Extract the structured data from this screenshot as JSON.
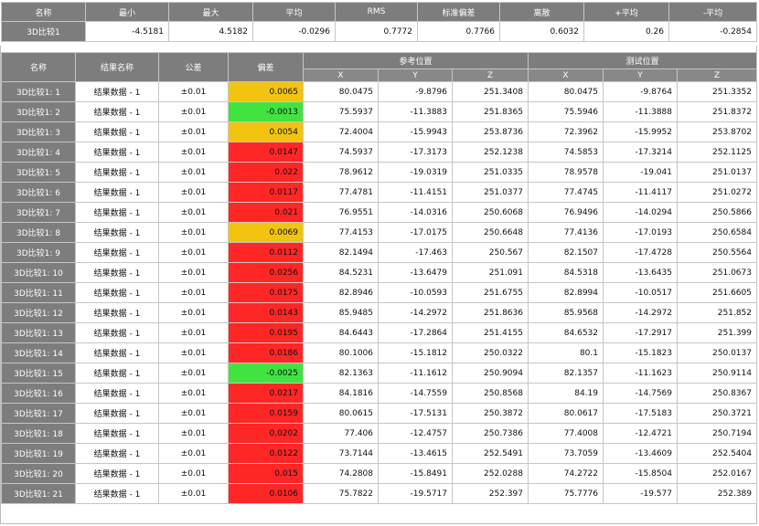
{
  "summary": {
    "headers": [
      "名称",
      "最小",
      "最大",
      "平均",
      "RMS",
      "标准偏差",
      "离散",
      "+平均",
      "-平均"
    ],
    "row": {
      "name": "3D比较1",
      "values": [
        "-4.5181",
        "4.5182",
        "-0.0296",
        "0.7772",
        "0.7766",
        "0.6032",
        "0.26",
        "-0.2854"
      ]
    }
  },
  "results": {
    "headers": {
      "name": "名称",
      "result_name": "结果名称",
      "tolerance": "公差",
      "deviation": "偏差",
      "ref_group": "参考位置",
      "test_group": "测试位置",
      "x": "X",
      "y": "Y",
      "z": "Z"
    },
    "colors": {
      "yellow": "#f2c40f",
      "green": "#41e341",
      "red": "#ff2626"
    },
    "rows": [
      {
        "name": "3D比较1: 1",
        "result": "结果数据 - 1",
        "tol": "±0.01",
        "dev": "0.0065",
        "status": "yellow",
        "rx": "80.0475",
        "ry": "-9.8796",
        "rz": "251.3408",
        "tx": "80.0475",
        "ty": "-9.8764",
        "tz": "251.3352"
      },
      {
        "name": "3D比较1: 2",
        "result": "结果数据 - 1",
        "tol": "±0.01",
        "dev": "-0.0013",
        "status": "green",
        "rx": "75.5937",
        "ry": "-11.3883",
        "rz": "251.8365",
        "tx": "75.5946",
        "ty": "-11.3888",
        "tz": "251.8372"
      },
      {
        "name": "3D比较1: 3",
        "result": "结果数据 - 1",
        "tol": "±0.01",
        "dev": "0.0054",
        "status": "yellow",
        "rx": "72.4004",
        "ry": "-15.9943",
        "rz": "253.8736",
        "tx": "72.3962",
        "ty": "-15.9952",
        "tz": "253.8702"
      },
      {
        "name": "3D比较1: 4",
        "result": "结果数据 - 1",
        "tol": "±0.01",
        "dev": "0.0147",
        "status": "red",
        "rx": "74.5937",
        "ry": "-17.3173",
        "rz": "252.1238",
        "tx": "74.5853",
        "ty": "-17.3214",
        "tz": "252.1125"
      },
      {
        "name": "3D比较1: 5",
        "result": "结果数据 - 1",
        "tol": "±0.01",
        "dev": "0.022",
        "status": "red",
        "rx": "78.9612",
        "ry": "-19.0319",
        "rz": "251.0335",
        "tx": "78.9578",
        "ty": "-19.041",
        "tz": "251.0137"
      },
      {
        "name": "3D比较1: 6",
        "result": "结果数据 - 1",
        "tol": "±0.01",
        "dev": "0.0117",
        "status": "red",
        "rx": "77.4781",
        "ry": "-11.4151",
        "rz": "251.0377",
        "tx": "77.4745",
        "ty": "-11.4117",
        "tz": "251.0272"
      },
      {
        "name": "3D比较1: 7",
        "result": "结果数据 - 1",
        "tol": "±0.01",
        "dev": "0.021",
        "status": "red",
        "rx": "76.9551",
        "ry": "-14.0316",
        "rz": "250.6068",
        "tx": "76.9496",
        "ty": "-14.0294",
        "tz": "250.5866"
      },
      {
        "name": "3D比较1: 8",
        "result": "结果数据 - 1",
        "tol": "±0.01",
        "dev": "0.0069",
        "status": "yellow",
        "rx": "77.4153",
        "ry": "-17.0175",
        "rz": "250.6648",
        "tx": "77.4136",
        "ty": "-17.0193",
        "tz": "250.6584"
      },
      {
        "name": "3D比较1: 9",
        "result": "结果数据 - 1",
        "tol": "±0.01",
        "dev": "0.0112",
        "status": "red",
        "rx": "82.1494",
        "ry": "-17.463",
        "rz": "250.567",
        "tx": "82.1507",
        "ty": "-17.4728",
        "tz": "250.5564"
      },
      {
        "name": "3D比较1: 10",
        "result": "结果数据 - 1",
        "tol": "±0.01",
        "dev": "0.0256",
        "status": "red",
        "rx": "84.5231",
        "ry": "-13.6479",
        "rz": "251.091",
        "tx": "84.5318",
        "ty": "-13.6435",
        "tz": "251.0673"
      },
      {
        "name": "3D比较1: 11",
        "result": "结果数据 - 1",
        "tol": "±0.01",
        "dev": "0.0175",
        "status": "red",
        "rx": "82.8946",
        "ry": "-10.0593",
        "rz": "251.6755",
        "tx": "82.8994",
        "ty": "-10.0517",
        "tz": "251.6605"
      },
      {
        "name": "3D比较1: 12",
        "result": "结果数据 - 1",
        "tol": "±0.01",
        "dev": "0.0143",
        "status": "red",
        "rx": "85.9485",
        "ry": "-14.2972",
        "rz": "251.8636",
        "tx": "85.9568",
        "ty": "-14.2972",
        "tz": "251.852"
      },
      {
        "name": "3D比较1: 13",
        "result": "结果数据 - 1",
        "tol": "±0.01",
        "dev": "0.0195",
        "status": "red",
        "rx": "84.6443",
        "ry": "-17.2864",
        "rz": "251.4155",
        "tx": "84.6532",
        "ty": "-17.2917",
        "tz": "251.399"
      },
      {
        "name": "3D比较1: 14",
        "result": "结果数据 - 1",
        "tol": "±0.01",
        "dev": "0.0186",
        "status": "red",
        "rx": "80.1006",
        "ry": "-15.1812",
        "rz": "250.0322",
        "tx": "80.1",
        "ty": "-15.1823",
        "tz": "250.0137"
      },
      {
        "name": "3D比较1: 15",
        "result": "结果数据 - 1",
        "tol": "±0.01",
        "dev": "-0.0025",
        "status": "green",
        "rx": "82.1363",
        "ry": "-11.1612",
        "rz": "250.9094",
        "tx": "82.1357",
        "ty": "-11.1623",
        "tz": "250.9114"
      },
      {
        "name": "3D比较1: 16",
        "result": "结果数据 - 1",
        "tol": "±0.01",
        "dev": "0.0217",
        "status": "red",
        "rx": "84.1816",
        "ry": "-14.7559",
        "rz": "250.8568",
        "tx": "84.19",
        "ty": "-14.7569",
        "tz": "250.8367"
      },
      {
        "name": "3D比较1: 17",
        "result": "结果数据 - 1",
        "tol": "±0.01",
        "dev": "0.0159",
        "status": "red",
        "rx": "80.0615",
        "ry": "-17.5131",
        "rz": "250.3872",
        "tx": "80.0617",
        "ty": "-17.5183",
        "tz": "250.3721"
      },
      {
        "name": "3D比较1: 18",
        "result": "结果数据 - 1",
        "tol": "±0.01",
        "dev": "0.0202",
        "status": "red",
        "rx": "77.406",
        "ry": "-12.4757",
        "rz": "250.7386",
        "tx": "77.4008",
        "ty": "-12.4721",
        "tz": "250.7194"
      },
      {
        "name": "3D比较1: 19",
        "result": "结果数据 - 1",
        "tol": "±0.01",
        "dev": "0.0122",
        "status": "red",
        "rx": "73.7144",
        "ry": "-13.4615",
        "rz": "252.5491",
        "tx": "73.7059",
        "ty": "-13.4609",
        "tz": "252.5404"
      },
      {
        "name": "3D比较1: 20",
        "result": "结果数据 - 1",
        "tol": "±0.01",
        "dev": "0.015",
        "status": "red",
        "rx": "74.2808",
        "ry": "-15.8491",
        "rz": "252.0288",
        "tx": "74.2722",
        "ty": "-15.8504",
        "tz": "252.0167"
      },
      {
        "name": "3D比较1: 21",
        "result": "结果数据 - 1",
        "tol": "±0.01",
        "dev": "0.0106",
        "status": "red",
        "rx": "75.7822",
        "ry": "-19.5717",
        "rz": "252.397",
        "tx": "75.7776",
        "ty": "-19.577",
        "tz": "252.389"
      }
    ]
  }
}
